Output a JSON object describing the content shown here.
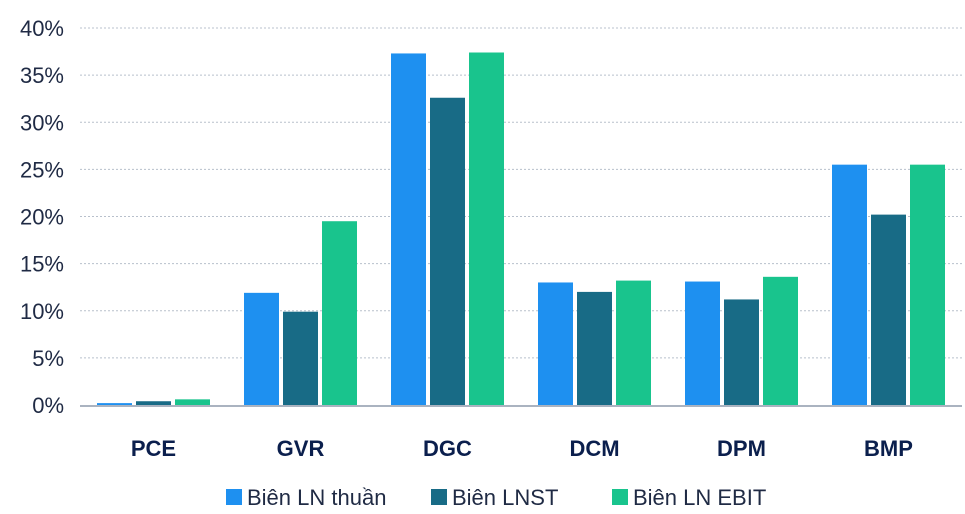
{
  "chart_data": {
    "type": "bar",
    "categories": [
      "PCE",
      "GVR",
      "DGC",
      "DCM",
      "DPM",
      "BMP"
    ],
    "series": [
      {
        "name": "Biên LN thuần",
        "color": "#1e90f0",
        "values": [
          0.2,
          11.9,
          37.3,
          13.0,
          13.1,
          25.5
        ]
      },
      {
        "name": "Biên LNST",
        "color": "#186b86",
        "values": [
          0.4,
          9.9,
          32.6,
          12.0,
          11.2,
          20.2
        ]
      },
      {
        "name": "Biên LN EBIT",
        "color": "#19c48d",
        "values": [
          0.6,
          19.5,
          37.4,
          13.2,
          13.6,
          25.5
        ]
      }
    ],
    "yticks": [
      "0%",
      "5%",
      "10%",
      "15%",
      "20%",
      "25%",
      "30%",
      "35%",
      "40%"
    ],
    "ylim": [
      0,
      40
    ],
    "grid": true,
    "legend_position": "bottom-center"
  }
}
